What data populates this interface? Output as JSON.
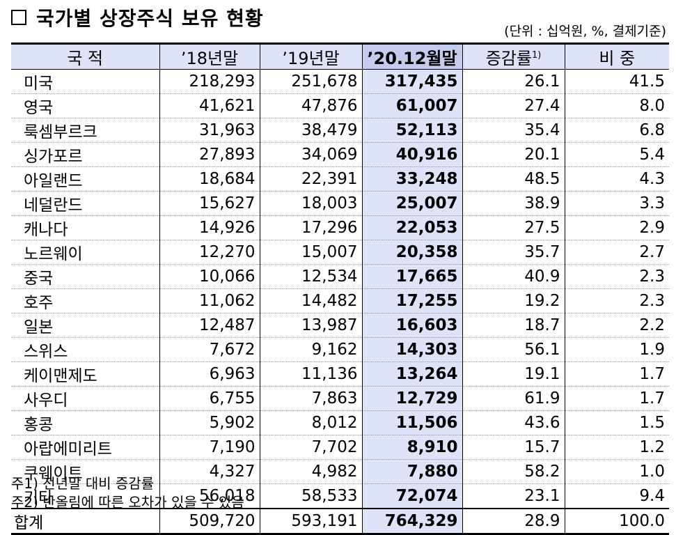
{
  "title": "국가별 상장주식 보유 현황",
  "unit": "(단위 : 십억원, %, 결제기준)",
  "columns": {
    "country": "국  적",
    "y2018": "’18년말",
    "y2019": "’19년말",
    "y2020": "’20.12월말",
    "change": "증감률",
    "change_note": "1)",
    "share": "비  중"
  },
  "rows": [
    {
      "country": "미국",
      "y2018": "218,293",
      "y2019": "251,678",
      "y2020": "317,435",
      "change": "26.1",
      "share": "41.5"
    },
    {
      "country": "영국",
      "y2018": "41,621",
      "y2019": "47,876",
      "y2020": "61,007",
      "change": "27.4",
      "share": "8.0"
    },
    {
      "country": "룩셈부르크",
      "y2018": "31,963",
      "y2019": "38,479",
      "y2020": "52,113",
      "change": "35.4",
      "share": "6.8"
    },
    {
      "country": "싱가포르",
      "y2018": "27,893",
      "y2019": "34,069",
      "y2020": "40,916",
      "change": "20.1",
      "share": "5.4"
    },
    {
      "country": "아일랜드",
      "y2018": "18,684",
      "y2019": "22,391",
      "y2020": "33,248",
      "change": "48.5",
      "share": "4.3"
    },
    {
      "country": "네덜란드",
      "y2018": "15,627",
      "y2019": "18,003",
      "y2020": "25,007",
      "change": "38.9",
      "share": "3.3"
    },
    {
      "country": "캐나다",
      "y2018": "14,926",
      "y2019": "17,296",
      "y2020": "22,053",
      "change": "27.5",
      "share": "2.9"
    },
    {
      "country": "노르웨이",
      "y2018": "12,270",
      "y2019": "15,007",
      "y2020": "20,358",
      "change": "35.7",
      "share": "2.7"
    },
    {
      "country": "중국",
      "y2018": "10,066",
      "y2019": "12,534",
      "y2020": "17,665",
      "change": "40.9",
      "share": "2.3"
    },
    {
      "country": "호주",
      "y2018": "11,062",
      "y2019": "14,482",
      "y2020": "17,255",
      "change": "19.2",
      "share": "2.3"
    },
    {
      "country": "일본",
      "y2018": "12,487",
      "y2019": "13,987",
      "y2020": "16,603",
      "change": "18.7",
      "share": "2.2"
    },
    {
      "country": "스위스",
      "y2018": "7,672",
      "y2019": "9,162",
      "y2020": "14,303",
      "change": "56.1",
      "share": "1.9"
    },
    {
      "country": "케이맨제도",
      "y2018": "6,963",
      "y2019": "11,136",
      "y2020": "13,264",
      "change": "19.1",
      "share": "1.7"
    },
    {
      "country": "사우디",
      "y2018": "6,755",
      "y2019": "7,863",
      "y2020": "12,729",
      "change": "61.9",
      "share": "1.7"
    },
    {
      "country": "홍콩",
      "y2018": "5,902",
      "y2019": "8,012",
      "y2020": "11,506",
      "change": "43.6",
      "share": "1.5"
    },
    {
      "country": "아랍에미리트",
      "y2018": "7,190",
      "y2019": "7,702",
      "y2020": "8,910",
      "change": "15.7",
      "share": "1.2"
    },
    {
      "country": "쿠웨이트",
      "y2018": "4,327",
      "y2019": "4,982",
      "y2020": "7,880",
      "change": "58.2",
      "share": "1.0"
    },
    {
      "country": "기타",
      "y2018": "56,018",
      "y2019": "58,533",
      "y2020": "72,074",
      "change": "23.1",
      "share": "9.4"
    }
  ],
  "total": {
    "country": "합계",
    "y2018": "509,720",
    "y2019": "593,191",
    "y2020": "764,329",
    "change": "28.9",
    "share": "100.0"
  },
  "notes": [
    "주1) 전년말 대비 증감률",
    "주2) 반올림에 따른 오차가 있을 수 있음"
  ],
  "colors": {
    "header_bg": "#dfe3f7",
    "highlight_header_bg": "#c5cbee",
    "highlight_col_bg": "#dfe3f7"
  }
}
